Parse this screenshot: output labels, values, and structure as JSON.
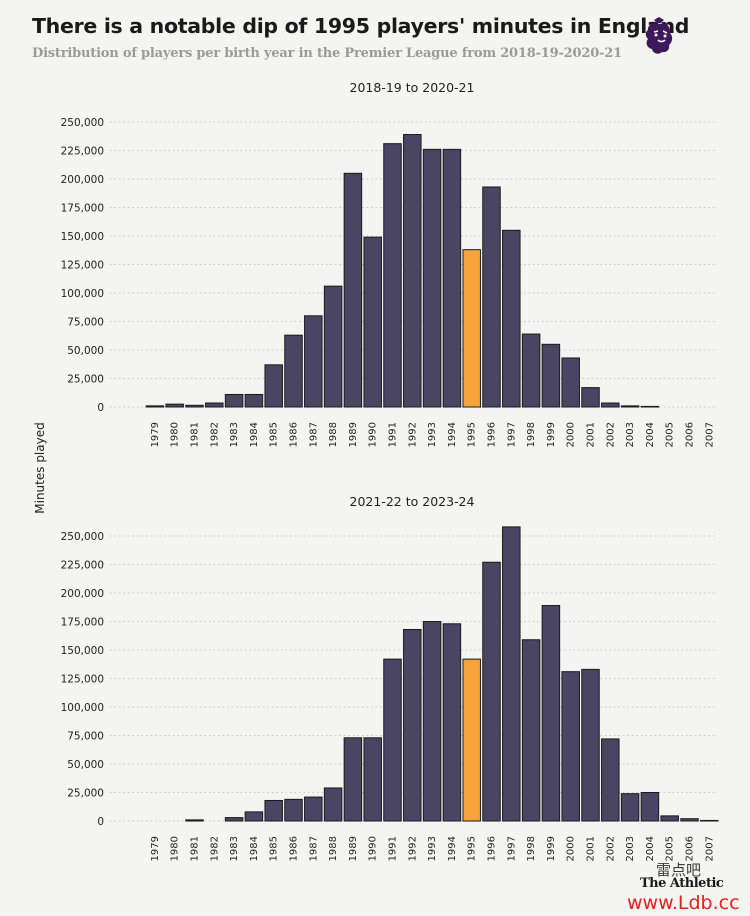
{
  "header": {
    "title": "There is a notable dip of 1995 players' minutes in England",
    "subtitle": "Distribution of players per birth year in the Premier League from 2018-19-2020-21"
  },
  "logo": {
    "icon": "premier-league-lion-icon",
    "color": "#3d195b"
  },
  "credit": "The Athletic",
  "watermark": {
    "line1": "雷点吧",
    "line2": "www.Ldb.cc"
  },
  "colors": {
    "bar": "#4a4563",
    "highlight": "#f5a33a",
    "bar_stroke": "#1a1a1a",
    "grid": "#c8c8c8",
    "background": "#f4f4f0"
  },
  "chart_data": [
    {
      "type": "bar",
      "title": "2018-19 to 2020-21",
      "ylabel": "Minutes played",
      "ylim": [
        0,
        250000
      ],
      "yticks": [
        0,
        25000,
        50000,
        75000,
        100000,
        125000,
        150000,
        175000,
        200000,
        225000,
        250000
      ],
      "ytick_labels": [
        "0",
        "25,000",
        "50,000",
        "75,000",
        "100,000",
        "125,000",
        "150,000",
        "175,000",
        "200,000",
        "225,000",
        "250,000"
      ],
      "grid": "horizontal-dotted",
      "highlight_category": "1995",
      "categories": [
        "1979",
        "1980",
        "1981",
        "1982",
        "1983",
        "1984",
        "1985",
        "1986",
        "1987",
        "1988",
        "1989",
        "1990",
        "1991",
        "1992",
        "1993",
        "1994",
        "1995",
        "1996",
        "1997",
        "1998",
        "1999",
        "2000",
        "2001",
        "2002",
        "2003",
        "2004",
        "2005",
        "2006",
        "2007"
      ],
      "values": [
        1000,
        2500,
        1500,
        3500,
        11000,
        11000,
        37000,
        63000,
        80000,
        106000,
        205000,
        149000,
        231000,
        239000,
        226000,
        226000,
        138000,
        193000,
        155000,
        64000,
        55000,
        43000,
        17000,
        3500,
        1000,
        500,
        0,
        0,
        0
      ]
    },
    {
      "type": "bar",
      "title": "2021-22 to 2023-24",
      "ylim": [
        0,
        250000
      ],
      "yticks": [
        0,
        25000,
        50000,
        75000,
        100000,
        125000,
        150000,
        175000,
        200000,
        225000,
        250000
      ],
      "ytick_labels": [
        "0",
        "25,000",
        "50,000",
        "75,000",
        "100,000",
        "125,000",
        "150,000",
        "175,000",
        "200,000",
        "225,000",
        "250,000"
      ],
      "grid": "horizontal-dotted",
      "highlight_category": "1995",
      "categories": [
        "1979",
        "1980",
        "1981",
        "1982",
        "1983",
        "1984",
        "1985",
        "1986",
        "1987",
        "1988",
        "1989",
        "1990",
        "1991",
        "1992",
        "1993",
        "1994",
        "1995",
        "1996",
        "1997",
        "1998",
        "1999",
        "2000",
        "2001",
        "2002",
        "2003",
        "2004",
        "2005",
        "2006",
        "2007"
      ],
      "values": [
        0,
        0,
        1000,
        0,
        3000,
        8000,
        18000,
        19000,
        21000,
        29000,
        73000,
        73000,
        142000,
        168000,
        175000,
        173000,
        142000,
        227000,
        258000,
        159000,
        189000,
        131000,
        133000,
        72000,
        24000,
        25000,
        4500,
        2000,
        500
      ]
    }
  ]
}
